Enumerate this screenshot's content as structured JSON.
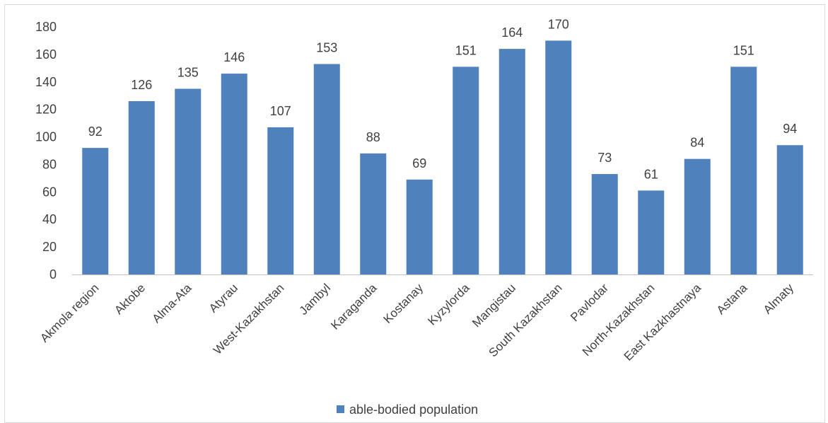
{
  "chart_data": {
    "type": "bar",
    "categories": [
      "Akmola region",
      "Aktobe",
      "Alma-Ata",
      "Atyrau",
      "West-Kazakhstan",
      "Jambyl",
      "Karaganda",
      "Kostanay",
      "Kyzylorda",
      "Mangistau",
      "South Kazakhstan",
      "Pavlodar",
      "North-Kazakhstan",
      "East Kazkhastnaya",
      "Astana",
      "Almaty"
    ],
    "series": [
      {
        "name": "able-bodied population",
        "values": [
          92,
          126,
          135,
          146,
          107,
          153,
          88,
          69,
          151,
          164,
          170,
          73,
          61,
          84,
          151,
          94
        ],
        "color": "#4f81bd"
      }
    ],
    "ylim": [
      0,
      180
    ],
    "yticks": [
      0,
      20,
      40,
      60,
      80,
      100,
      120,
      140,
      160,
      180
    ],
    "grid": false,
    "legend": "bottom",
    "data_labels": true
  }
}
